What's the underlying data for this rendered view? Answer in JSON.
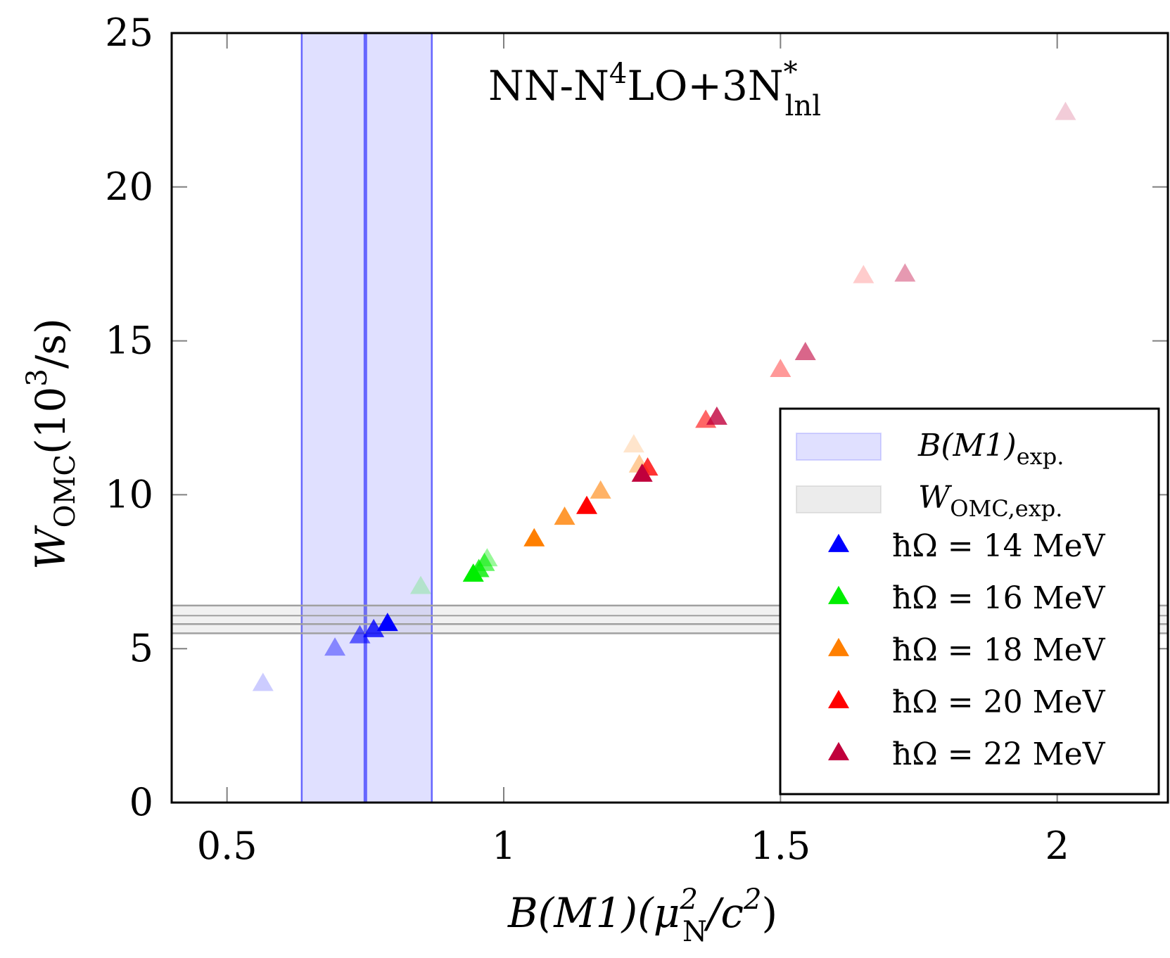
{
  "chart_data": {
    "type": "scatter",
    "annotation": {
      "main": "NN-N",
      "sup": "4",
      "rest": "LO+3N",
      "sup2": "*",
      "sub": "lnl"
    },
    "xlabel": {
      "base": "B(M1)(μ",
      "sup": "2",
      "sub": "N",
      "rest": "/c",
      "sup2": "2",
      "close": ")"
    },
    "ylabel": {
      "base": "W",
      "sub": "OMC",
      "open": "(10",
      "sup": "3",
      "rest": "/s)"
    },
    "xlim": [
      0.4,
      2.2
    ],
    "ylim": [
      0,
      25
    ],
    "xticks": [
      0.5,
      1,
      1.5,
      2
    ],
    "xtick_labels": [
      "0.5",
      "1",
      "1.5",
      "2"
    ],
    "yticks": [
      0,
      5,
      10,
      15,
      20,
      25
    ],
    "ytick_labels": [
      "0",
      "5",
      "10",
      "15",
      "20",
      "25"
    ],
    "grid": false,
    "legend_placement": "lower-right",
    "bands": [
      {
        "name": "B(M1)exp.",
        "label_base": "B(M1)",
        "label_sub": "exp.",
        "orientation": "vertical",
        "center": 0.75,
        "low": 0.635,
        "high": 0.87,
        "color": "#6666ff"
      },
      {
        "name": "WOMC,exp.",
        "label_base": "W",
        "label_sub": "OMC,exp.",
        "orientation": "horizontal",
        "center": 5.8,
        "low": 5.5,
        "high": 6.4,
        "color": "#a0a0a0"
      }
    ],
    "series": [
      {
        "name": "ħΩ = 14 MeV",
        "color": "#0000ff",
        "points": [
          [
            0.565,
            3.85,
            0.2
          ],
          [
            0.695,
            5.0,
            0.4
          ],
          [
            0.74,
            5.4,
            0.6
          ],
          [
            0.765,
            5.6,
            0.8
          ],
          [
            0.79,
            5.8,
            1.0
          ]
        ]
      },
      {
        "name": "ħΩ = 16 MeV",
        "color": "#00ee00",
        "points": [
          [
            0.85,
            7.0,
            0.2
          ],
          [
            0.945,
            7.4,
            1.0
          ],
          [
            0.955,
            7.55,
            0.8
          ],
          [
            0.965,
            7.75,
            0.6
          ],
          [
            0.97,
            7.9,
            0.4
          ]
        ]
      },
      {
        "name": "ħΩ = 18 MeV",
        "color": "#ff7f00",
        "points": [
          [
            1.055,
            8.55,
            1.0
          ],
          [
            1.11,
            9.25,
            0.8
          ],
          [
            1.175,
            10.1,
            0.6
          ],
          [
            1.245,
            10.95,
            0.4
          ],
          [
            1.235,
            11.6,
            0.2
          ]
        ]
      },
      {
        "name": "ħΩ = 20 MeV",
        "color": "#ff0000",
        "points": [
          [
            1.15,
            9.6,
            1.0
          ],
          [
            1.26,
            10.85,
            0.8
          ],
          [
            1.365,
            12.4,
            0.6
          ],
          [
            1.5,
            14.05,
            0.4
          ],
          [
            1.65,
            17.1,
            0.2
          ]
        ]
      },
      {
        "name": "ħΩ = 22 MeV",
        "color": "#c0003c",
        "points": [
          [
            1.25,
            10.65,
            1.0
          ],
          [
            1.385,
            12.5,
            0.8
          ],
          [
            1.545,
            14.6,
            0.6
          ],
          [
            1.725,
            17.15,
            0.4
          ],
          [
            2.015,
            22.4,
            0.2
          ]
        ]
      }
    ]
  }
}
